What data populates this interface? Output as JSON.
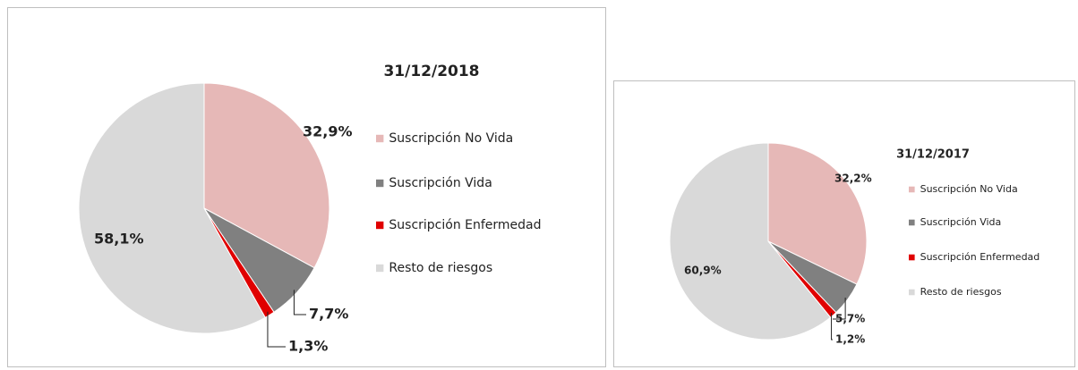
{
  "chart_data": [
    {
      "type": "pie",
      "title": "31/12/2018",
      "categories": [
        "Suscripción No Vida",
        "Suscripción Vida",
        "Suscripción Enfermedad",
        "Resto de riesgos"
      ],
      "values": [
        32.9,
        7.7,
        1.3,
        58.1
      ],
      "value_labels": [
        "32,9%",
        "7,7%",
        "1,3%",
        "58,1%"
      ],
      "colors": [
        "#e6b8b7",
        "#808080",
        "#e00000",
        "#d9d9d9"
      ]
    },
    {
      "type": "pie",
      "title": "31/12/2017",
      "categories": [
        "Suscripción No Vida",
        "Suscripción Vida",
        "Suscripción Enfermedad",
        "Resto de riesgos"
      ],
      "values": [
        32.2,
        5.7,
        1.2,
        60.9
      ],
      "value_labels": [
        "32,2%",
        "5,7%",
        "1,2%",
        "60,9%"
      ],
      "colors": [
        "#e6b8b7",
        "#808080",
        "#e00000",
        "#d9d9d9"
      ]
    }
  ]
}
